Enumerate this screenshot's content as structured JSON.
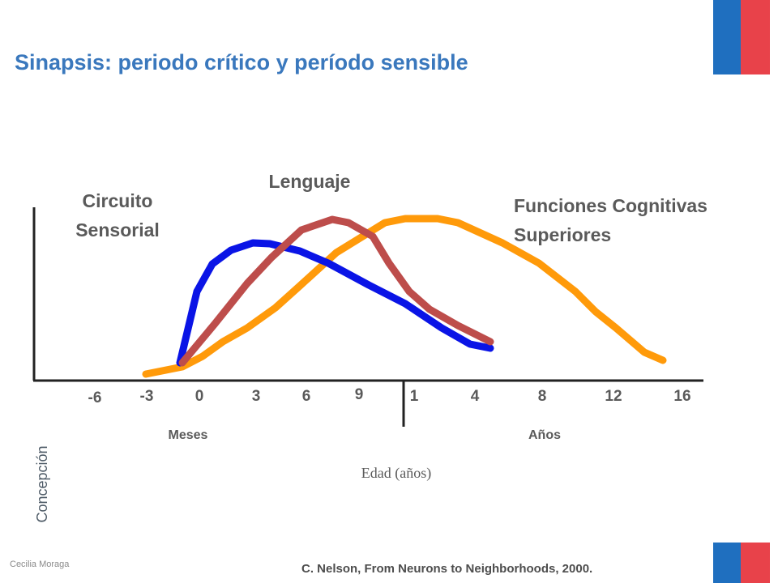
{
  "title": "Sinapsis: periodo crítico y período sensible",
  "labels": {
    "sensory": [
      "Circuito",
      "Sensorial"
    ],
    "language": "Lenguaje",
    "cognitive": [
      "Funciones Cognitivas",
      "Superiores"
    ]
  },
  "axis": {
    "ticks": [
      "-6",
      "-3",
      "0",
      "3",
      "6",
      "9",
      "1",
      "4",
      "8",
      "12",
      "16"
    ],
    "months": "Meses",
    "years": "Años",
    "title": "Edad (años)",
    "conception": "Concepción"
  },
  "footer": {
    "author": "Cecilia Moraga",
    "citation": "C. Nelson, From Neurons to Neighborhoods, 2000."
  }
}
